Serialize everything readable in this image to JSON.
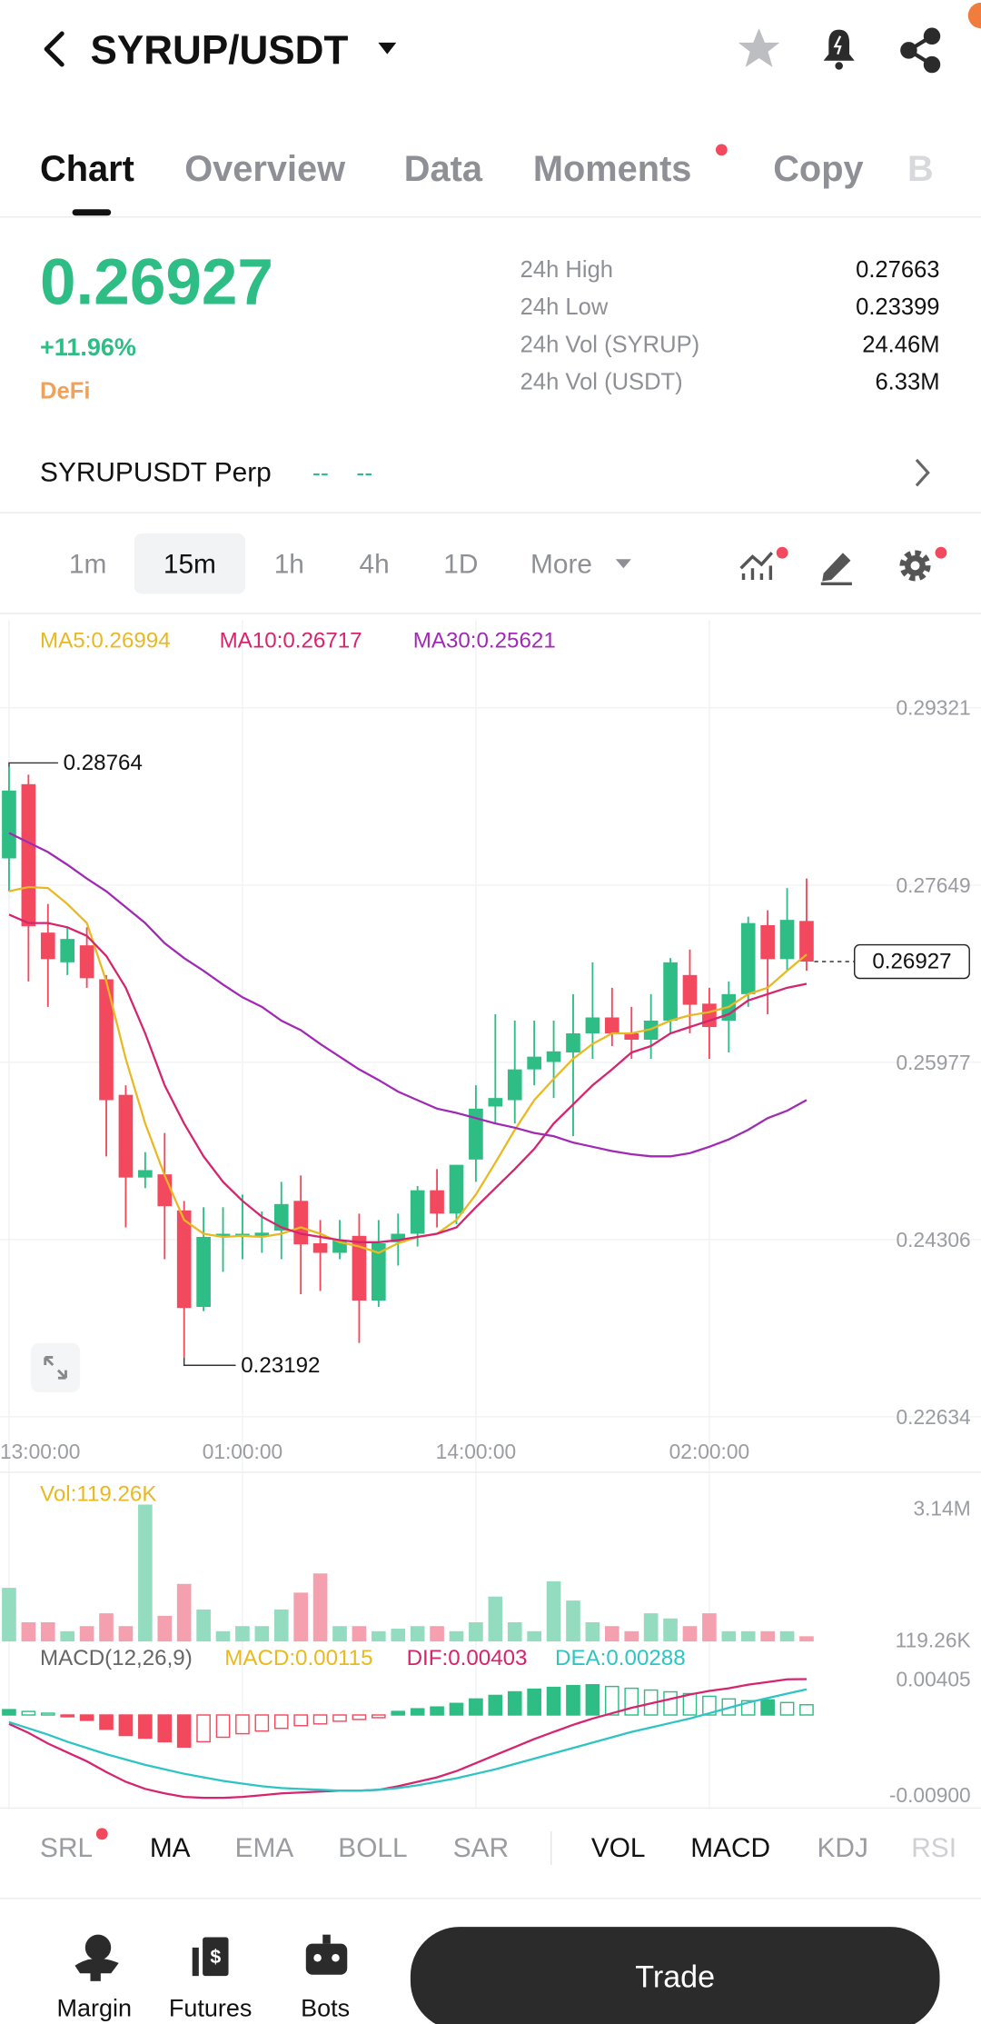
{
  "header": {
    "title": "SYRUP/USDT"
  },
  "tabs": [
    "Chart",
    "Overview",
    "Data",
    "Moments",
    "Copy",
    "B"
  ],
  "ticker": {
    "price": "0.26927",
    "change": "+11.96%",
    "sector": "DeFi",
    "stats": [
      {
        "label": "24h High",
        "value": "0.27663"
      },
      {
        "label": "24h Low",
        "value": "0.23399"
      },
      {
        "label": "24h Vol (SYRUP)",
        "value": "24.46M"
      },
      {
        "label": "24h Vol (USDT)",
        "value": "6.33M"
      }
    ]
  },
  "perp": {
    "symbol": "SYRUPUSDT Perp",
    "mark": "--",
    "index": "--"
  },
  "intervals": [
    "1m",
    "15m",
    "1h",
    "4h",
    "1D",
    "More"
  ],
  "indicators": [
    "SRL",
    "MA",
    "EMA",
    "BOLL",
    "SAR",
    "VOL",
    "MACD",
    "KDJ",
    "RSI"
  ],
  "nav": {
    "items": [
      "Margin",
      "Futures",
      "Bots"
    ],
    "action": "Trade"
  },
  "chart_data": [
    {
      "type": "candlestick",
      "up_color": "#2dbd85",
      "down_color": "#f2495e",
      "grid": true,
      "ylim": [
        0.22634,
        0.29321
      ],
      "yticks": [
        0.29321,
        0.27649,
        0.25977,
        0.24306,
        0.22634
      ],
      "categories": [
        "13:00:00",
        null,
        null,
        null,
        null,
        null,
        null,
        null,
        null,
        null,
        null,
        null,
        "01:00:00",
        null,
        null,
        null,
        null,
        null,
        null,
        null,
        null,
        null,
        null,
        null,
        "14:00:00",
        null,
        null,
        null,
        null,
        null,
        null,
        null,
        null,
        null,
        null,
        null,
        "02:00:00",
        null,
        null,
        null,
        null,
        null
      ],
      "candles": [
        {
          "open": 0.279,
          "high": 0.28764,
          "low": 0.2759,
          "close": 0.2854
        },
        {
          "open": 0.286,
          "high": 0.2869,
          "low": 0.2674,
          "close": 0.2726
        },
        {
          "open": 0.272,
          "high": 0.2747,
          "low": 0.265,
          "close": 0.2695
        },
        {
          "open": 0.2692,
          "high": 0.2725,
          "low": 0.268,
          "close": 0.2714
        },
        {
          "open": 0.2708,
          "high": 0.2725,
          "low": 0.2668,
          "close": 0.2677
        },
        {
          "open": 0.2676,
          "high": 0.268,
          "low": 0.2509,
          "close": 0.2562
        },
        {
          "open": 0.2567,
          "high": 0.2576,
          "low": 0.2442,
          "close": 0.2489
        },
        {
          "open": 0.2489,
          "high": 0.2513,
          "low": 0.2479,
          "close": 0.2496
        },
        {
          "open": 0.2492,
          "high": 0.2531,
          "low": 0.2412,
          "close": 0.2462
        },
        {
          "open": 0.2458,
          "high": 0.2467,
          "low": 0.23192,
          "close": 0.2366
        },
        {
          "open": 0.2367,
          "high": 0.2461,
          "low": 0.2363,
          "close": 0.2433
        },
        {
          "open": 0.2433,
          "high": 0.2461,
          "low": 0.24,
          "close": 0.2436
        },
        {
          "open": 0.2433,
          "high": 0.2473,
          "low": 0.2412,
          "close": 0.2436
        },
        {
          "open": 0.2434,
          "high": 0.2457,
          "low": 0.2418,
          "close": 0.2437
        },
        {
          "open": 0.2439,
          "high": 0.2485,
          "low": 0.2412,
          "close": 0.2464
        },
        {
          "open": 0.2467,
          "high": 0.2491,
          "low": 0.2379,
          "close": 0.2426
        },
        {
          "open": 0.2427,
          "high": 0.2449,
          "low": 0.2382,
          "close": 0.2418
        },
        {
          "open": 0.2418,
          "high": 0.2449,
          "low": 0.2412,
          "close": 0.243
        },
        {
          "open": 0.2434,
          "high": 0.2455,
          "low": 0.2333,
          "close": 0.2373
        },
        {
          "open": 0.2373,
          "high": 0.2449,
          "low": 0.2367,
          "close": 0.2427
        },
        {
          "open": 0.2428,
          "high": 0.2455,
          "low": 0.2406,
          "close": 0.2436
        },
        {
          "open": 0.2436,
          "high": 0.2481,
          "low": 0.2424,
          "close": 0.2477
        },
        {
          "open": 0.2477,
          "high": 0.2497,
          "low": 0.2442,
          "close": 0.2455
        },
        {
          "open": 0.2455,
          "high": 0.2501,
          "low": 0.2445,
          "close": 0.2501
        },
        {
          "open": 0.2506,
          "high": 0.2576,
          "low": 0.2485,
          "close": 0.2554
        },
        {
          "open": 0.2556,
          "high": 0.2643,
          "low": 0.254,
          "close": 0.2564
        },
        {
          "open": 0.2562,
          "high": 0.2637,
          "low": 0.254,
          "close": 0.2591
        },
        {
          "open": 0.2591,
          "high": 0.2637,
          "low": 0.2576,
          "close": 0.2603
        },
        {
          "open": 0.2598,
          "high": 0.2637,
          "low": 0.2564,
          "close": 0.2608
        },
        {
          "open": 0.2607,
          "high": 0.2662,
          "low": 0.2528,
          "close": 0.2625
        },
        {
          "open": 0.2625,
          "high": 0.2692,
          "low": 0.2601,
          "close": 0.264
        },
        {
          "open": 0.264,
          "high": 0.2668,
          "low": 0.2613,
          "close": 0.2625
        },
        {
          "open": 0.2625,
          "high": 0.265,
          "low": 0.2601,
          "close": 0.2619
        },
        {
          "open": 0.2619,
          "high": 0.2662,
          "low": 0.2601,
          "close": 0.2637
        },
        {
          "open": 0.2637,
          "high": 0.2696,
          "low": 0.2625,
          "close": 0.2692
        },
        {
          "open": 0.268,
          "high": 0.2704,
          "low": 0.2625,
          "close": 0.2652
        },
        {
          "open": 0.2653,
          "high": 0.2668,
          "low": 0.2601,
          "close": 0.2631
        },
        {
          "open": 0.2637,
          "high": 0.2674,
          "low": 0.2607,
          "close": 0.2662
        },
        {
          "open": 0.2662,
          "high": 0.2735,
          "low": 0.265,
          "close": 0.2729
        },
        {
          "open": 0.2727,
          "high": 0.2741,
          "low": 0.2643,
          "close": 0.2695
        },
        {
          "open": 0.2695,
          "high": 0.2762,
          "low": 0.2684,
          "close": 0.2732
        },
        {
          "open": 0.2731,
          "high": 0.2771,
          "low": 0.2684,
          "close": 0.26927
        }
      ],
      "series": [
        {
          "name": "MA5:0.26994",
          "color": "#e8b923",
          "values": [
            0.2759,
            0.2763,
            0.2762,
            0.2747,
            0.2729,
            0.2674,
            0.2601,
            0.254,
            0.2491,
            0.2449,
            0.2436,
            0.2433,
            0.2434,
            0.2433,
            0.2436,
            0.2442,
            0.2436,
            0.2428,
            0.2424,
            0.2418,
            0.2427,
            0.2433,
            0.2436,
            0.2449,
            0.2473,
            0.2503,
            0.2534,
            0.2562,
            0.2582,
            0.2601,
            0.2615,
            0.2625,
            0.2625,
            0.2629,
            0.2637,
            0.2642,
            0.2645,
            0.265,
            0.2662,
            0.2668,
            0.2684,
            0.26994
          ]
        },
        {
          "name": "MA10:0.26717",
          "color": "#d6246e",
          "values": [
            0.2737,
            0.2729,
            0.2729,
            0.2725,
            0.2717,
            0.2698,
            0.2668,
            0.2625,
            0.2576,
            0.254,
            0.2509,
            0.2485,
            0.2467,
            0.2452,
            0.2442,
            0.2436,
            0.2433,
            0.243,
            0.2428,
            0.2428,
            0.243,
            0.2433,
            0.2436,
            0.2442,
            0.2461,
            0.2479,
            0.2497,
            0.2516,
            0.254,
            0.2558,
            0.2576,
            0.2591,
            0.2607,
            0.2613,
            0.2625,
            0.2631,
            0.2637,
            0.2643,
            0.2656,
            0.2662,
            0.2668,
            0.26717
          ]
        },
        {
          "name": "MA30:0.25621",
          "color": "#a12ab5",
          "values": [
            0.2814,
            0.2805,
            0.2796,
            0.2784,
            0.2771,
            0.2759,
            0.2744,
            0.2729,
            0.271,
            0.2696,
            0.2684,
            0.2671,
            0.2659,
            0.265,
            0.2637,
            0.2628,
            0.2615,
            0.2603,
            0.2591,
            0.2581,
            0.257,
            0.2562,
            0.2554,
            0.255,
            0.2545,
            0.254,
            0.2536,
            0.2531,
            0.2528,
            0.2522,
            0.2518,
            0.2514,
            0.2511,
            0.2509,
            0.2509,
            0.2512,
            0.2518,
            0.2525,
            0.2534,
            0.2545,
            0.2552,
            0.25621
          ]
        }
      ]
    },
    {
      "type": "bar",
      "title": "Vol:119.26K",
      "title_color": "#e8b923",
      "up_color": "#93dcc0",
      "down_color": "#f5a0ae",
      "ylim": [
        0,
        3140000
      ],
      "yticks": [
        {
          "value": 3140000,
          "label": "3.14M"
        },
        {
          "value": 119260,
          "label": "119.26K"
        }
      ],
      "values": [
        1230000,
        440000,
        440000,
        235000,
        352000,
        646000,
        352000,
        3140000,
        587000,
        1320000,
        734000,
        235000,
        352000,
        352000,
        734000,
        1120000,
        1560000,
        352000,
        352000,
        235000,
        293000,
        352000,
        352000,
        235000,
        440000,
        1030000,
        440000,
        235000,
        1380000,
        939000,
        440000,
        352000,
        235000,
        646000,
        528000,
        352000,
        646000,
        235000,
        235000,
        235000,
        235000,
        119260
      ]
    },
    {
      "type": "macd",
      "title": "MACD(12,26,9)",
      "up_color": "#2dbd85",
      "down_color": "#f2495e",
      "ylim": [
        -0.009,
        0.00405
      ],
      "yticks": [
        0.00405,
        {
          "value": -0.009,
          "label": "-0.00900"
        }
      ],
      "series": [
        {
          "name": "MACD:0.00115",
          "color": "#e8b923",
          "values": [
            0.0006,
            0.0004,
            0.0002,
            -0.0002,
            -0.0006,
            -0.0016,
            -0.0023,
            -0.0026,
            -0.003,
            -0.0036,
            -0.003,
            -0.0025,
            -0.0021,
            -0.0018,
            -0.0015,
            -0.0012,
            -0.001,
            -0.0007,
            -0.0005,
            -0.0003,
            0.0004,
            0.0007,
            0.0009,
            0.0013,
            0.0018,
            0.0022,
            0.0026,
            0.0029,
            0.0031,
            0.0033,
            0.0034,
            0.0032,
            0.003,
            0.0028,
            0.0026,
            0.0024,
            0.0021,
            0.0018,
            0.0016,
            0.0017,
            0.0014,
            0.00115
          ]
        },
        {
          "name": "DIF:0.00403",
          "color": "#d6246e",
          "values": [
            -0.001,
            -0.002,
            -0.0032,
            -0.0042,
            -0.0052,
            -0.0064,
            -0.0075,
            -0.0083,
            -0.0088,
            -0.0092,
            -0.0093,
            -0.0093,
            -0.0092,
            -0.009,
            -0.0088,
            -0.0087,
            -0.0086,
            -0.0085,
            -0.0085,
            -0.0084,
            -0.008,
            -0.0075,
            -0.007,
            -0.0063,
            -0.0054,
            -0.0045,
            -0.0036,
            -0.0027,
            -0.0019,
            -0.0011,
            -0.0004,
            0.0002,
            0.0008,
            0.0013,
            0.0018,
            0.0023,
            0.0027,
            0.003,
            0.0034,
            0.0037,
            0.004,
            0.00403
          ]
        },
        {
          "name": "DEA:0.00288",
          "color": "#2ec4c4",
          "values": [
            -0.0008,
            -0.0015,
            -0.0022,
            -0.003,
            -0.0037,
            -0.0044,
            -0.005,
            -0.0056,
            -0.0061,
            -0.0066,
            -0.007,
            -0.0074,
            -0.0077,
            -0.008,
            -0.0082,
            -0.0083,
            -0.0084,
            -0.0085,
            -0.0085,
            -0.0084,
            -0.0082,
            -0.0079,
            -0.0075,
            -0.0071,
            -0.0066,
            -0.0061,
            -0.0055,
            -0.0049,
            -0.0043,
            -0.0037,
            -0.0031,
            -0.0025,
            -0.0019,
            -0.0014,
            -0.0009,
            -0.0004,
            0.0002,
            0.0008,
            0.0014,
            0.0019,
            0.0024,
            0.00288
          ]
        }
      ]
    }
  ]
}
